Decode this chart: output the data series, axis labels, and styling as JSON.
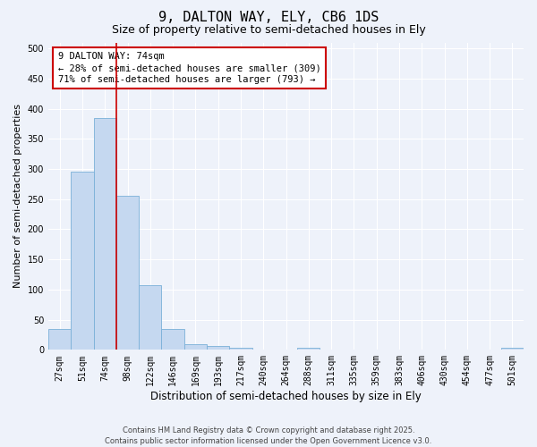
{
  "title": "9, DALTON WAY, ELY, CB6 1DS",
  "subtitle": "Size of property relative to semi-detached houses in Ely",
  "xlabel": "Distribution of semi-detached houses by size in Ely",
  "ylabel": "Number of semi-detached properties",
  "bins": [
    "27sqm",
    "51sqm",
    "74sqm",
    "98sqm",
    "122sqm",
    "146sqm",
    "169sqm",
    "193sqm",
    "217sqm",
    "240sqm",
    "264sqm",
    "288sqm",
    "311sqm",
    "335sqm",
    "359sqm",
    "383sqm",
    "406sqm",
    "430sqm",
    "454sqm",
    "477sqm",
    "501sqm"
  ],
  "values": [
    35,
    295,
    385,
    255,
    108,
    35,
    10,
    6,
    4,
    0,
    0,
    4,
    0,
    0,
    0,
    0,
    0,
    0,
    0,
    0,
    4
  ],
  "bar_color": "#c5d8f0",
  "bar_edge_color": "#7ab0d8",
  "vline_color": "#cc0000",
  "annotation_box_text": "9 DALTON WAY: 74sqm\n← 28% of semi-detached houses are smaller (309)\n71% of semi-detached houses are larger (793) →",
  "annotation_box_color": "#cc0000",
  "ylim": [
    0,
    510
  ],
  "yticks": [
    0,
    50,
    100,
    150,
    200,
    250,
    300,
    350,
    400,
    450,
    500
  ],
  "background_color": "#eef2fa",
  "grid_color": "#ffffff",
  "footer": "Contains HM Land Registry data © Crown copyright and database right 2025.\nContains public sector information licensed under the Open Government Licence v3.0.",
  "title_fontsize": 11,
  "subtitle_fontsize": 9,
  "xlabel_fontsize": 8.5,
  "ylabel_fontsize": 8,
  "tick_fontsize": 7,
  "annot_fontsize": 7.5,
  "footer_fontsize": 6
}
